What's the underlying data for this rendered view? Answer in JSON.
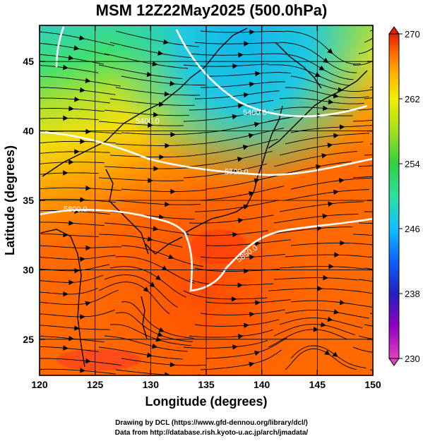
{
  "title": "MSM 12Z22May2025 (500.0hPa)",
  "x_axis": {
    "label": "Longitude (degrees)",
    "ticks": [
      {
        "value": 120,
        "label": "120"
      },
      {
        "value": 125,
        "label": "125"
      },
      {
        "value": 130,
        "label": "130"
      },
      {
        "value": 135,
        "label": "135"
      },
      {
        "value": 140,
        "label": "140"
      },
      {
        "value": 145,
        "label": "145"
      },
      {
        "value": 150,
        "label": "150"
      }
    ],
    "range": [
      120,
      150
    ]
  },
  "y_axis": {
    "label": "Latitude  (degrees)",
    "ticks": [
      {
        "value": 25,
        "label": "25"
      },
      {
        "value": 30,
        "label": "30"
      },
      {
        "value": 35,
        "label": "35"
      },
      {
        "value": 40,
        "label": "40"
      },
      {
        "value": 45,
        "label": "45"
      }
    ],
    "range": [
      22.4,
      47.6
    ]
  },
  "colorbar": {
    "range": [
      230,
      270
    ],
    "ticks": [
      {
        "value": 230,
        "label": "230"
      },
      {
        "value": 238,
        "label": "238"
      },
      {
        "value": 246,
        "label": "246"
      },
      {
        "value": 254,
        "label": "254"
      },
      {
        "value": 262,
        "label": "262"
      },
      {
        "value": 270,
        "label": "270"
      }
    ],
    "colors": [
      "#e040c0",
      "#9000c0",
      "#2020c0",
      "#1060ff",
      "#10c0ff",
      "#30e0a0",
      "#30d040",
      "#a0e020",
      "#f0f000",
      "#ffb000",
      "#ff6000",
      "#e02000"
    ]
  },
  "contours": [
    {
      "label": "5400.0"
    },
    {
      "label": "5700.0"
    },
    {
      "label": "5800.0"
    },
    {
      "label": "5850.0"
    }
  ],
  "credits": {
    "line1": "Drawing by DCL (https://www.gfd-dennou.org/library/dcl/)",
    "line2": "Data from http://database.rish.kyoto-u.ac.jp/arch/jmadata/"
  }
}
